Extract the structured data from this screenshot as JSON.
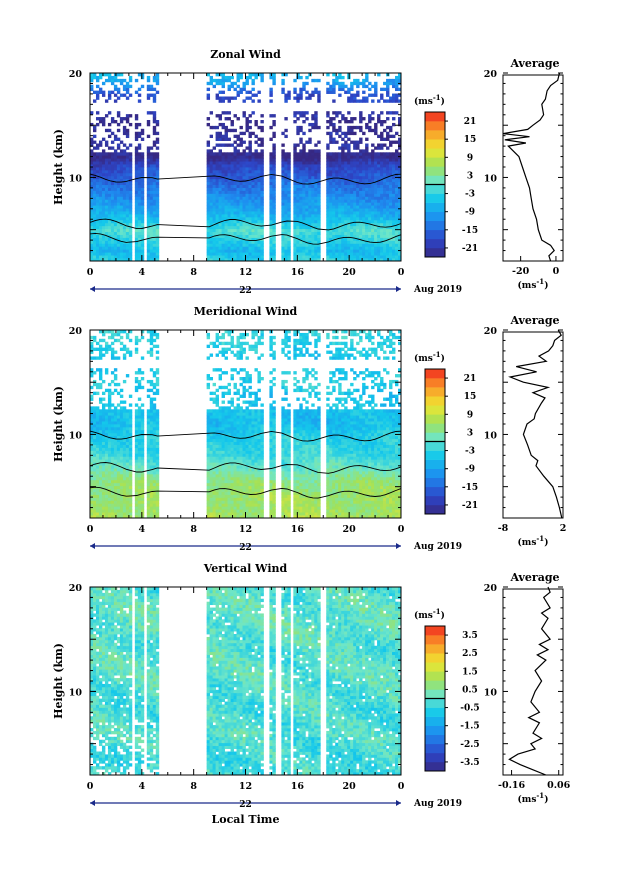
{
  "chart_data": [
    {
      "type": "heatmap",
      "title": "Zonal Wind",
      "ylabel": "Height (km)",
      "x_ticks": [
        "0",
        "4",
        "8",
        "12",
        "16",
        "20",
        "0"
      ],
      "xlim": [
        0,
        24
      ],
      "y_ticks": [
        "20",
        "10"
      ],
      "ylim": [
        2,
        20
      ],
      "date_label": "22",
      "date_suffix": "Aug 2019",
      "colorbar": {
        "unit": "(ms",
        "unit_exp": "-1",
        "unit_close": ")",
        "labels": [
          "21",
          "15",
          "9",
          "3",
          "-3",
          "-9",
          "-15",
          "-21"
        ],
        "range": [
          -24,
          24
        ]
      },
      "data_gaps_hours": [
        [
          3.15,
          3.55
        ],
        [
          4.05,
          4.45
        ],
        [
          5.3,
          8.95
        ],
        [
          13.45,
          13.75
        ],
        [
          14.35,
          14.75
        ],
        [
          15.5,
          15.8
        ],
        [
          17.85,
          18.2
        ]
      ],
      "profile_by_height": [
        {
          "z": 2,
          "v": -3
        },
        {
          "z": 3,
          "v": -6
        },
        {
          "z": 4,
          "v": -3
        },
        {
          "z": 5,
          "v": -1
        },
        {
          "z": 6,
          "v": -6
        },
        {
          "z": 7,
          "v": -9
        },
        {
          "z": 8,
          "v": -11
        },
        {
          "z": 9,
          "v": -13
        },
        {
          "z": 10,
          "v": -16
        },
        {
          "z": 11,
          "v": -18
        },
        {
          "z": 12,
          "v": -24
        },
        {
          "z": 13,
          "v": -22
        },
        {
          "z": 14,
          "v": -22
        },
        {
          "z": 15,
          "v": -23
        },
        {
          "z": 16,
          "v": -21
        },
        {
          "z": 17,
          "v": -19
        },
        {
          "z": 18,
          "v": -18
        },
        {
          "z": 19,
          "v": -10
        },
        {
          "z": 20,
          "v": -6
        }
      ],
      "average": {
        "title": "Average",
        "x_ticks": [
          "-20",
          "0"
        ],
        "xlim": [
          -30,
          4
        ],
        "y_ticks": [
          "20",
          "10"
        ],
        "unit": "(ms",
        "unit_exp": "-1",
        "unit_close": ")",
        "profile": [
          {
            "z": 2,
            "v": -3
          },
          {
            "z": 2.5,
            "v": -4
          },
          {
            "z": 3,
            "v": -1
          },
          {
            "z": 3.5,
            "v": -3
          },
          {
            "z": 4,
            "v": -8
          },
          {
            "z": 5,
            "v": -10
          },
          {
            "z": 6,
            "v": -11
          },
          {
            "z": 7,
            "v": -13
          },
          {
            "z": 8,
            "v": -14
          },
          {
            "z": 9,
            "v": -15
          },
          {
            "z": 10,
            "v": -17
          },
          {
            "z": 11,
            "v": -19
          },
          {
            "z": 12,
            "v": -21
          },
          {
            "z": 12.5,
            "v": -24
          },
          {
            "z": 13,
            "v": -27
          },
          {
            "z": 13.3,
            "v": -17
          },
          {
            "z": 13.6,
            "v": -29
          },
          {
            "z": 13.9,
            "v": -15
          },
          {
            "z": 14.2,
            "v": -30
          },
          {
            "z": 14.6,
            "v": -16
          },
          {
            "z": 15,
            "v": -13
          },
          {
            "z": 15.5,
            "v": -9
          },
          {
            "z": 16,
            "v": -7
          },
          {
            "z": 17,
            "v": -8
          },
          {
            "z": 17.5,
            "v": -6
          },
          {
            "z": 18.3,
            "v": -5
          },
          {
            "z": 18.8,
            "v": -3
          },
          {
            "z": 19.3,
            "v": 1
          },
          {
            "z": 20,
            "v": 2
          }
        ]
      }
    },
    {
      "type": "heatmap",
      "title": "Meridional Wind",
      "ylabel": "Height (km)",
      "x_ticks": [
        "0",
        "4",
        "8",
        "12",
        "16",
        "20",
        "0"
      ],
      "xlim": [
        0,
        24
      ],
      "y_ticks": [
        "20",
        "10"
      ],
      "ylim": [
        2,
        20
      ],
      "date_label": "22",
      "date_suffix": "Aug 2019",
      "colorbar": {
        "unit": "(ms",
        "unit_exp": "-1",
        "unit_close": ")",
        "labels": [
          "21",
          "15",
          "9",
          "3",
          "-3",
          "-9",
          "-15",
          "-21"
        ],
        "range": [
          -24,
          24
        ]
      },
      "data_gaps_hours": [
        [
          3.15,
          3.55
        ],
        [
          4.05,
          4.45
        ],
        [
          5.3,
          8.95
        ],
        [
          13.45,
          13.75
        ],
        [
          14.35,
          14.75
        ],
        [
          15.5,
          15.8
        ],
        [
          17.85,
          18.2
        ]
      ],
      "profile_by_height": [
        {
          "z": 2,
          "v": 7
        },
        {
          "z": 3,
          "v": 6
        },
        {
          "z": 4,
          "v": 6
        },
        {
          "z": 5,
          "v": 5
        },
        {
          "z": 6,
          "v": 3
        },
        {
          "z": 7,
          "v": 0
        },
        {
          "z": 8,
          "v": -2
        },
        {
          "z": 9,
          "v": -3
        },
        {
          "z": 10,
          "v": -4
        },
        {
          "z": 11,
          "v": -6
        },
        {
          "z": 12,
          "v": -6
        },
        {
          "z": 13,
          "v": -5
        },
        {
          "z": 14,
          "v": -5
        },
        {
          "z": 15,
          "v": -3
        },
        {
          "z": 16,
          "v": -4
        },
        {
          "z": 17,
          "v": -5
        },
        {
          "z": 18,
          "v": -4
        },
        {
          "z": 19,
          "v": -3
        },
        {
          "z": 20,
          "v": -3
        }
      ],
      "average": {
        "title": "Average",
        "x_ticks": [
          "-8",
          "2"
        ],
        "xlim": [
          -8,
          2
        ],
        "y_ticks": [
          "20",
          "10"
        ],
        "unit": "(ms",
        "unit_exp": "-1",
        "unit_close": ")",
        "profile": [
          {
            "z": 2,
            "v": 1.8
          },
          {
            "z": 3,
            "v": 1.4
          },
          {
            "z": 4,
            "v": 0.9
          },
          {
            "z": 5,
            "v": 0.3
          },
          {
            "z": 6,
            "v": -1.2
          },
          {
            "z": 7,
            "v": -2.5
          },
          {
            "z": 7.5,
            "v": -2.2
          },
          {
            "z": 8,
            "v": -3.3
          },
          {
            "z": 9,
            "v": -3.9
          },
          {
            "z": 10,
            "v": -4.6
          },
          {
            "z": 11,
            "v": -4.0
          },
          {
            "z": 11.5,
            "v": -2.8
          },
          {
            "z": 12,
            "v": -2.6
          },
          {
            "z": 13,
            "v": -1.6
          },
          {
            "z": 13.5,
            "v": -1.0
          },
          {
            "z": 14,
            "v": -3.0
          },
          {
            "z": 14.5,
            "v": -0.5
          },
          {
            "z": 15,
            "v": -4.6
          },
          {
            "z": 15.5,
            "v": -6.8
          },
          {
            "z": 16,
            "v": -2.4
          },
          {
            "z": 16.5,
            "v": -5.8
          },
          {
            "z": 17,
            "v": -0.8
          },
          {
            "z": 17.5,
            "v": -2.0
          },
          {
            "z": 18,
            "v": -0.4
          },
          {
            "z": 18.5,
            "v": 0.3
          },
          {
            "z": 19,
            "v": 0.6
          },
          {
            "z": 19.5,
            "v": 1.7
          },
          {
            "z": 20,
            "v": 1.2
          }
        ]
      }
    },
    {
      "type": "heatmap",
      "title": "Vertical Wind",
      "ylabel": "Height (km)",
      "xlabel": "Local Time",
      "x_ticks": [
        "0",
        "4",
        "8",
        "12",
        "16",
        "20",
        "0"
      ],
      "xlim": [
        0,
        24
      ],
      "y_ticks": [
        "20",
        "10"
      ],
      "ylim": [
        2,
        20
      ],
      "date_label": "22",
      "date_suffix": "Aug 2019",
      "colorbar": {
        "unit": "(ms",
        "unit_exp": "-1",
        "unit_close": ")",
        "labels": [
          "3.5",
          "2.5",
          "1.5",
          "0.5",
          "-0.5",
          "-1.5",
          "-2.5",
          "-3.5"
        ],
        "range": [
          -4,
          4
        ]
      },
      "data_gaps_hours": [
        [
          3.15,
          3.55
        ],
        [
          4.05,
          4.45
        ],
        [
          5.3,
          8.95
        ],
        [
          13.45,
          13.75
        ],
        [
          14.35,
          14.75
        ],
        [
          15.5,
          15.8
        ],
        [
          17.85,
          18.2
        ]
      ],
      "profile_by_height": [
        {
          "z": 2,
          "v": -0.2
        },
        {
          "z": 4,
          "v": -0.3
        },
        {
          "z": 6,
          "v": -0.1
        },
        {
          "z": 8,
          "v": -0.2
        },
        {
          "z": 10,
          "v": -0.1
        },
        {
          "z": 12,
          "v": 0.0
        },
        {
          "z": 14,
          "v": -0.1
        },
        {
          "z": 16,
          "v": 0.1
        },
        {
          "z": 18,
          "v": 0.0
        },
        {
          "z": 20,
          "v": -0.1
        }
      ],
      "average": {
        "title": "Average",
        "x_ticks": [
          "-0.16",
          "0.06"
        ],
        "xlim": [
          -0.2,
          0.08
        ],
        "y_ticks": [
          "20",
          "10"
        ],
        "unit": "(ms",
        "unit_exp": "-1",
        "unit_close": ")",
        "profile": [
          {
            "z": 2,
            "v": 0.0
          },
          {
            "z": 2.5,
            "v": -0.06
          },
          {
            "z": 3,
            "v": -0.12
          },
          {
            "z": 3.5,
            "v": -0.17
          },
          {
            "z": 4,
            "v": -0.13
          },
          {
            "z": 4.5,
            "v": -0.05
          },
          {
            "z": 5,
            "v": -0.07
          },
          {
            "z": 5.5,
            "v": -0.02
          },
          {
            "z": 6,
            "v": -0.06
          },
          {
            "z": 7,
            "v": -0.03
          },
          {
            "z": 7.5,
            "v": -0.08
          },
          {
            "z": 8,
            "v": -0.03
          },
          {
            "z": 9,
            "v": -0.07
          },
          {
            "z": 10,
            "v": -0.05
          },
          {
            "z": 11,
            "v": -0.02
          },
          {
            "z": 12,
            "v": -0.05
          },
          {
            "z": 13,
            "v": 0.0
          },
          {
            "z": 13.5,
            "v": -0.04
          },
          {
            "z": 14,
            "v": 0.01
          },
          {
            "z": 14.5,
            "v": -0.03
          },
          {
            "z": 15,
            "v": 0.02
          },
          {
            "z": 16,
            "v": -0.02
          },
          {
            "z": 17,
            "v": 0.01
          },
          {
            "z": 17.5,
            "v": -0.02
          },
          {
            "z": 18,
            "v": 0.02
          },
          {
            "z": 19,
            "v": -0.01
          },
          {
            "z": 19.5,
            "v": 0.02
          },
          {
            "z": 20,
            "v": 0.01
          }
        ]
      }
    }
  ]
}
